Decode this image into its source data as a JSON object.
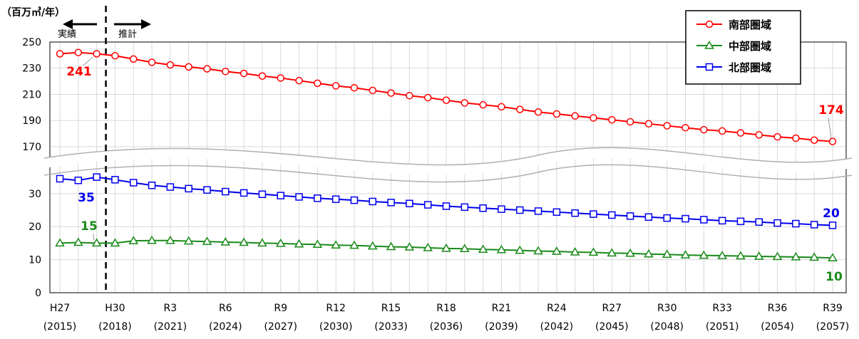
{
  "chart_data": {
    "type": "line",
    "unit_label": "（百万㎥/年）",
    "actual_label": "実績",
    "forecast_label": "推計",
    "x": [
      2015,
      2016,
      2017,
      2018,
      2019,
      2020,
      2021,
      2022,
      2023,
      2024,
      2025,
      2026,
      2027,
      2028,
      2029,
      2030,
      2031,
      2032,
      2033,
      2034,
      2035,
      2036,
      2037,
      2038,
      2039,
      2040,
      2041,
      2042,
      2043,
      2044,
      2045,
      2046,
      2047,
      2048,
      2049,
      2050,
      2051,
      2052,
      2053,
      2054,
      2055,
      2056,
      2057
    ],
    "x_ticks": [
      {
        "year": 2015,
        "era": "H27",
        "western": "(2015)"
      },
      {
        "year": 2018,
        "era": "H30",
        "western": "(2018)"
      },
      {
        "year": 2021,
        "era": "R3",
        "western": "(2021)"
      },
      {
        "year": 2024,
        "era": "R6",
        "western": "(2024)"
      },
      {
        "year": 2027,
        "era": "R9",
        "western": "(2027)"
      },
      {
        "year": 2030,
        "era": "R12",
        "western": "(2030)"
      },
      {
        "year": 2033,
        "era": "R15",
        "western": "(2033)"
      },
      {
        "year": 2036,
        "era": "R18",
        "western": "(2036)"
      },
      {
        "year": 2039,
        "era": "R21",
        "western": "(2039)"
      },
      {
        "year": 2042,
        "era": "R24",
        "western": "(2042)"
      },
      {
        "year": 2045,
        "era": "R27",
        "western": "(2045)"
      },
      {
        "year": 2048,
        "era": "R30",
        "western": "(2048)"
      },
      {
        "year": 2051,
        "era": "R33",
        "western": "(2051)"
      },
      {
        "year": 2054,
        "era": "R36",
        "western": "(2054)"
      },
      {
        "year": 2057,
        "era": "R39",
        "western": "(2057)"
      }
    ],
    "divider_year": 2017.5,
    "upper_panel": {
      "ylim": [
        158,
        250
      ],
      "ticks": [
        170,
        190,
        210,
        230,
        250
      ]
    },
    "lower_panel": {
      "ylim": [
        0,
        36
      ],
      "ticks": [
        0,
        10,
        20,
        30
      ]
    },
    "legend_position": "top-right",
    "series": [
      {
        "name": "南部圏域",
        "panel": "upper",
        "color": "#ff0000",
        "marker": "circle",
        "values": [
          241.0,
          242.0,
          241.0,
          239.5,
          237.0,
          234.5,
          232.5,
          231.0,
          229.5,
          227.5,
          226.0,
          224.0,
          222.5,
          220.5,
          218.5,
          216.5,
          215.0,
          213.0,
          211.0,
          209.0,
          207.5,
          205.5,
          203.5,
          202.0,
          200.5,
          198.5,
          196.5,
          195.0,
          193.5,
          192.0,
          190.5,
          189.0,
          187.5,
          186.0,
          184.5,
          183.0,
          182.0,
          180.5,
          179.0,
          177.5,
          176.5,
          175.0,
          174.0
        ],
        "labels": [
          {
            "year": 2017,
            "text": "241"
          },
          {
            "year": 2057,
            "text": "174"
          }
        ]
      },
      {
        "name": "中部圏域",
        "panel": "lower",
        "color": "#1a8a1a",
        "marker": "triangle",
        "values": [
          15.0,
          15.2,
          15.0,
          15.0,
          15.7,
          15.8,
          15.8,
          15.6,
          15.5,
          15.3,
          15.2,
          15.0,
          14.9,
          14.7,
          14.6,
          14.4,
          14.3,
          14.1,
          13.9,
          13.8,
          13.6,
          13.4,
          13.3,
          13.1,
          13.0,
          12.8,
          12.6,
          12.5,
          12.3,
          12.2,
          12.0,
          11.9,
          11.7,
          11.6,
          11.4,
          11.3,
          11.2,
          11.1,
          11.0,
          10.9,
          10.8,
          10.7,
          10.5
        ],
        "labels": [
          {
            "year": 2017,
            "text": "15"
          },
          {
            "year": 2057,
            "text": "10"
          }
        ]
      },
      {
        "name": "北部圏域",
        "panel": "lower",
        "color": "#0000ee",
        "marker": "square",
        "values": [
          34.5,
          34.0,
          35.0,
          34.2,
          33.3,
          32.5,
          32.0,
          31.5,
          31.1,
          30.6,
          30.2,
          29.8,
          29.4,
          29.0,
          28.6,
          28.3,
          28.0,
          27.6,
          27.3,
          27.0,
          26.6,
          26.2,
          25.9,
          25.6,
          25.3,
          25.0,
          24.7,
          24.4,
          24.1,
          23.8,
          23.5,
          23.2,
          22.9,
          22.6,
          22.4,
          22.1,
          21.8,
          21.6,
          21.4,
          21.1,
          20.9,
          20.6,
          20.4
        ],
        "labels": [
          {
            "year": 2017,
            "text": "35"
          },
          {
            "year": 2057,
            "text": "20"
          }
        ]
      }
    ]
  }
}
